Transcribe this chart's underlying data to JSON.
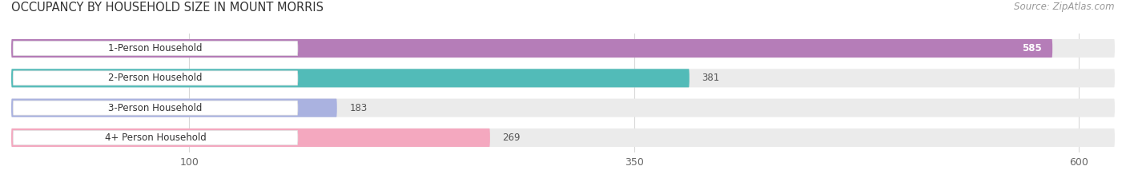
{
  "title": "OCCUPANCY BY HOUSEHOLD SIZE IN MOUNT MORRIS",
  "source": "Source: ZipAtlas.com",
  "categories": [
    "1-Person Household",
    "2-Person Household",
    "3-Person Household",
    "4+ Person Household"
  ],
  "values": [
    585,
    381,
    183,
    269
  ],
  "bar_colors": [
    "#b57db8",
    "#52bbb8",
    "#aab2e0",
    "#f4a8bf"
  ],
  "xlim_max": 620,
  "xticks": [
    100,
    350,
    600
  ],
  "title_fontsize": 10.5,
  "source_fontsize": 8.5,
  "label_fontsize": 8.5,
  "value_fontsize": 8.5,
  "tick_fontsize": 9,
  "figsize": [
    14.06,
    2.33
  ],
  "dpi": 100
}
